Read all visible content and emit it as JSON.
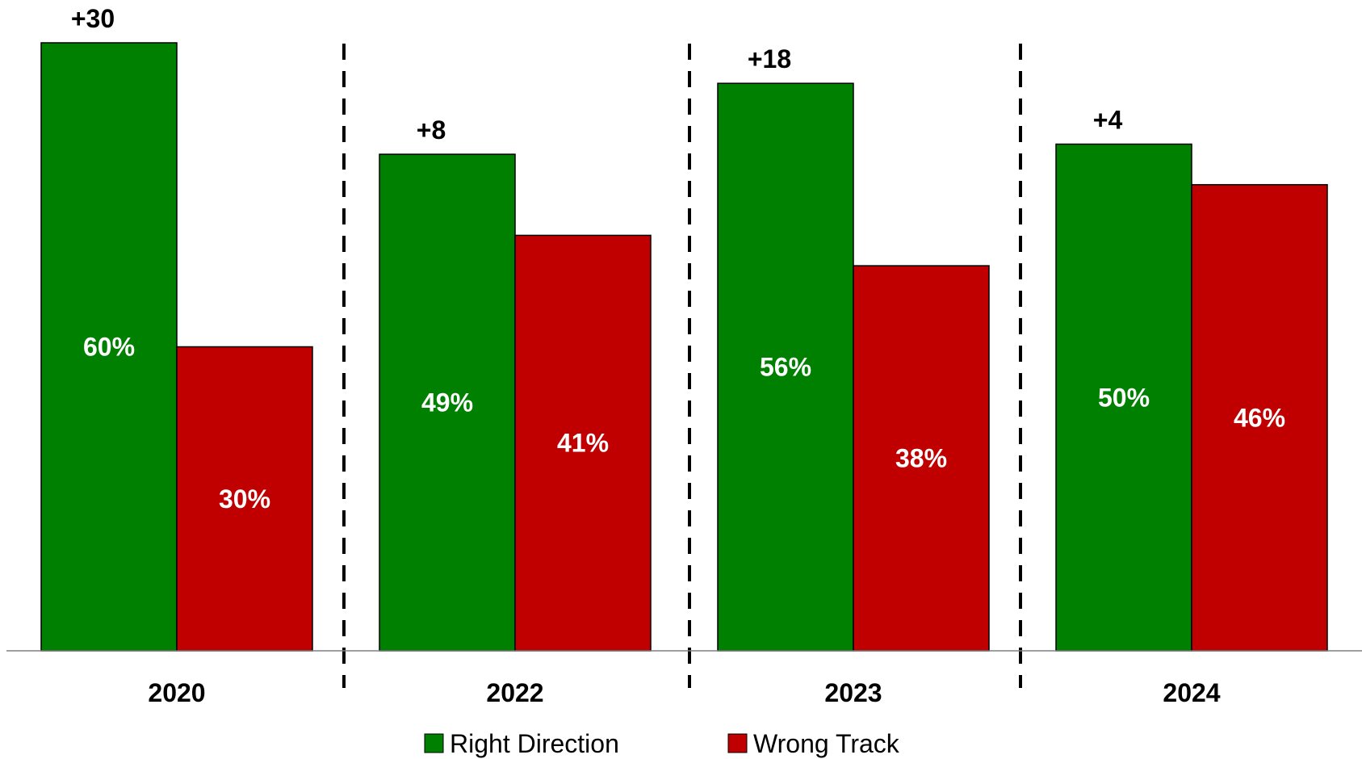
{
  "chart_data": {
    "type": "bar",
    "categories": [
      "2020",
      "2022",
      "2023",
      "2024"
    ],
    "series": [
      {
        "name": "Right Direction",
        "values": [
          60,
          49,
          56,
          50
        ],
        "labels": [
          "60%",
          "49%",
          "56%",
          "50%"
        ],
        "color": "#008000"
      },
      {
        "name": "Wrong Track",
        "values": [
          30,
          41,
          38,
          46
        ],
        "labels": [
          "30%",
          "41%",
          "38%",
          "46%"
        ],
        "color": "#C00000"
      }
    ],
    "difference_labels": [
      "+30",
      "+8",
      "+18",
      "+4"
    ],
    "ylim": [
      0,
      60
    ],
    "grid": false,
    "legend": "bottom-center",
    "dashed_separators": true
  }
}
